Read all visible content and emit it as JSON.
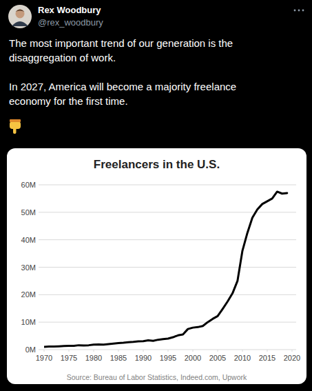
{
  "tweet": {
    "name": "Rex Woodbury",
    "handle": "@rex_woodbury",
    "paragraphs": [
      "The most important trend of our generation is the disaggregation of work.",
      "In 2027, America will become a majority freelance economy for the first time."
    ]
  },
  "chart_data": {
    "type": "line",
    "title": "Freelancers in the U.S.",
    "source": "Source: Bureau of Labor Statistics, Indeed.com, Upwork",
    "color": "#000000",
    "grid": true,
    "x": [
      1970,
      1971,
      1972,
      1973,
      1974,
      1975,
      1976,
      1977,
      1978,
      1979,
      1980,
      1981,
      1982,
      1983,
      1984,
      1985,
      1986,
      1987,
      1988,
      1989,
      1990,
      1991,
      1992,
      1993,
      1994,
      1995,
      1996,
      1997,
      1998,
      1999,
      2000,
      2001,
      2002,
      2003,
      2004,
      2005,
      2006,
      2007,
      2008,
      2009,
      2010,
      2011,
      2012,
      2013,
      2014,
      2015,
      2016,
      2017,
      2018,
      2019
    ],
    "values": [
      1.0,
      1.1,
      1.1,
      1.2,
      1.3,
      1.4,
      1.4,
      1.6,
      1.5,
      1.6,
      1.8,
      1.9,
      1.8,
      2.0,
      2.2,
      2.4,
      2.5,
      2.7,
      2.8,
      3.0,
      3.1,
      3.4,
      3.2,
      3.6,
      3.8,
      4.0,
      4.5,
      5.2,
      5.5,
      7.5,
      8.0,
      8.2,
      8.6,
      10.0,
      11.2,
      12.2,
      14.8,
      17.5,
      20.5,
      25.0,
      36.0,
      42.5,
      48.0,
      51.0,
      53.0,
      54.0,
      55.0,
      57.5,
      56.8,
      57.0
    ],
    "xlim": [
      1970,
      2020
    ],
    "xticks": [
      1970,
      1975,
      1980,
      1985,
      1990,
      1995,
      2000,
      2005,
      2010,
      2015,
      2020
    ],
    "ylim": [
      0,
      60
    ],
    "yticks": [
      {
        "value": 0,
        "label": "0M"
      },
      {
        "value": 10,
        "label": "10M"
      },
      {
        "value": 20,
        "label": "20M"
      },
      {
        "value": 30,
        "label": "30M"
      },
      {
        "value": 40,
        "label": "40M"
      },
      {
        "value": 50,
        "label": "50M"
      },
      {
        "value": 60,
        "label": "60M"
      }
    ]
  }
}
